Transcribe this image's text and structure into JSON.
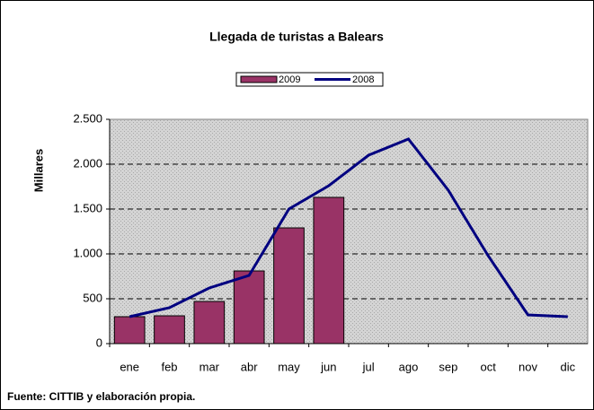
{
  "chart_data": {
    "type": "bar-line",
    "title": "Llegada de turistas a Balears",
    "y_label": "Millares",
    "source": "Fuente: CITTIB  y elaboración propia.",
    "categories": [
      "ene",
      "feb",
      "mar",
      "abr",
      "may",
      "jun",
      "jul",
      "ago",
      "sep",
      "oct",
      "nov",
      "dic"
    ],
    "series": [
      {
        "name": "2009",
        "type": "bar",
        "color": "#993366",
        "values": [
          300,
          310,
          470,
          810,
          1290,
          1630,
          null,
          null,
          null,
          null,
          null,
          null
        ]
      },
      {
        "name": "2008",
        "type": "line",
        "color": "#000080",
        "values": [
          300,
          400,
          620,
          760,
          1500,
          1760,
          2100,
          2280,
          1710,
          980,
          320,
          300
        ]
      }
    ],
    "ylim": [
      0,
      2500
    ],
    "yticks": [
      0,
      500,
      {
        "value": 1000,
        "label": "1.000"
      },
      {
        "value": 1500,
        "label": "1.500"
      },
      {
        "value": 2000,
        "label": "2.000"
      },
      {
        "value": 2500,
        "label": "2.500"
      }
    ],
    "grid": true
  }
}
